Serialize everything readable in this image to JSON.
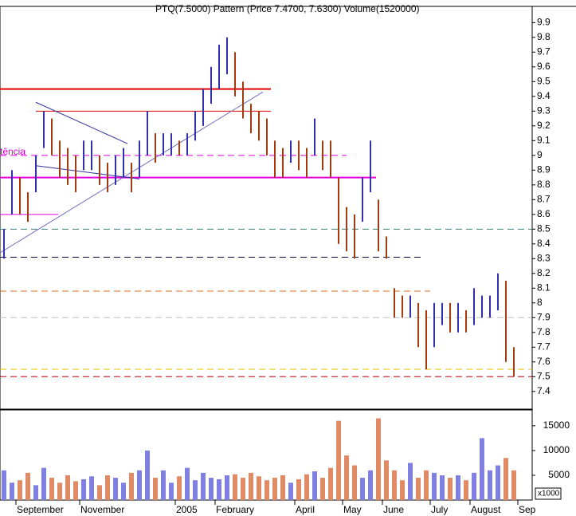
{
  "chart_data": {
    "type": "hilo",
    "title": "PTQ(7.5000) Pattern (Price 7.4700, 7.6300) Volume(1520000)",
    "annotation": "tência",
    "categories": [
      null,
      null,
      "September",
      null,
      null,
      null,
      null,
      null,
      null,
      null,
      "November",
      null,
      null,
      null,
      null,
      null,
      null,
      null,
      null,
      null,
      null,
      null,
      "2005",
      null,
      null,
      null,
      null,
      "February",
      null,
      null,
      null,
      null,
      null,
      null,
      null,
      null,
      null,
      "April",
      null,
      null,
      null,
      null,
      null,
      "May",
      null,
      null,
      null,
      null,
      "June",
      null,
      null,
      null,
      null,
      null,
      "July",
      null,
      null,
      null,
      null,
      "August",
      null,
      null,
      null,
      null,
      null,
      "Sep",
      null
    ],
    "high": [
      8.5,
      8.9,
      8.85,
      8.75,
      9.0,
      9.3,
      9.25,
      9.1,
      9.05,
      9.0,
      9.1,
      9.1,
      9.0,
      8.95,
      9.0,
      9.05,
      8.95,
      9.1,
      9.3,
      9.15,
      9.15,
      9.15,
      9.1,
      9.15,
      9.3,
      9.45,
      9.6,
      9.75,
      9.8,
      9.7,
      9.5,
      9.35,
      9.3,
      9.25,
      9.1,
      9.05,
      9.1,
      9.1,
      9.05,
      9.25,
      9.1,
      9.1,
      8.85,
      8.65,
      8.6,
      8.85,
      9.1,
      8.7,
      8.45,
      8.1,
      8.05,
      8.05,
      8.0,
      7.95,
      8.0,
      8.0,
      8.0,
      8.0,
      7.95,
      8.1,
      8.05,
      8.05,
      8.2,
      8.15,
      7.7,
      null,
      null
    ],
    "low": [
      8.3,
      8.6,
      8.6,
      8.55,
      8.75,
      9.05,
      9.0,
      8.85,
      8.8,
      8.75,
      8.9,
      8.9,
      8.8,
      8.75,
      8.8,
      8.85,
      8.75,
      8.85,
      9.0,
      8.95,
      9.0,
      9.0,
      9.0,
      9.0,
      9.1,
      9.2,
      9.35,
      9.45,
      9.55,
      9.4,
      9.25,
      9.15,
      9.1,
      9.0,
      8.85,
      8.85,
      8.95,
      8.9,
      8.85,
      9.0,
      8.9,
      8.85,
      8.4,
      8.35,
      8.3,
      8.55,
      8.75,
      8.35,
      8.3,
      7.9,
      7.9,
      7.9,
      7.7,
      7.55,
      7.7,
      7.85,
      7.8,
      7.8,
      7.8,
      7.85,
      7.9,
      7.9,
      7.95,
      7.6,
      7.5,
      null,
      null
    ],
    "up_color": "#3030b0",
    "down_color": "#a03c10",
    "ylim": [
      7.28,
      10.01
    ],
    "yticks": [
      7.4,
      7.5,
      7.6,
      7.7,
      7.8,
      7.9,
      8.0,
      8.1,
      8.2,
      8.3,
      8.4,
      8.5,
      8.6,
      8.7,
      8.8,
      8.9,
      9.0,
      9.1,
      9.2,
      9.3,
      9.4,
      9.5,
      9.6,
      9.7,
      9.8,
      9.9
    ],
    "lines": [
      {
        "x0": 0,
        "x1": 34,
        "y0": 9.45,
        "y1": 9.45,
        "color": "#e00000",
        "width": 2,
        "dash": false
      },
      {
        "x0": 4.5,
        "x1": 34,
        "y0": 9.3,
        "y1": 9.3,
        "color": "#e00000",
        "width": 1,
        "dash": false
      },
      {
        "x0": 0,
        "x1": 43.5,
        "y0": 9.0,
        "y1": 9.0,
        "color": "#e000e0",
        "width": 1,
        "dash": true
      },
      {
        "x0": 0,
        "x1": 47.2,
        "y0": 8.85,
        "y1": 8.85,
        "color": "#e000e0",
        "width": 2,
        "dash": false
      },
      {
        "x0": 0,
        "x1": 7.3,
        "y0": 8.6,
        "y1": 8.6,
        "color": "#e000e0",
        "width": 1,
        "dash": false
      },
      {
        "x0": 0,
        "x1": 66.8,
        "y0": 8.5,
        "y1": 8.5,
        "color": "#408080",
        "width": 1,
        "dash": true
      },
      {
        "x0": 0,
        "x1": 53,
        "y0": 8.31,
        "y1": 8.31,
        "color": "#000040",
        "width": 1,
        "dash": true
      },
      {
        "x0": 0,
        "x1": 54,
        "y0": 8.08,
        "y1": 8.08,
        "color": "#e07020",
        "width": 1,
        "dash": true
      },
      {
        "x0": 0,
        "x1": 66.8,
        "y0": 7.9,
        "y1": 7.9,
        "color": "#c0c0c0",
        "width": 1,
        "dash": true
      },
      {
        "x0": 0,
        "x1": 66.8,
        "y0": 7.55,
        "y1": 7.55,
        "color": "#e0c000",
        "width": 1,
        "dash": true
      },
      {
        "x0": 0,
        "x1": 66.8,
        "y0": 7.5,
        "y1": 7.5,
        "color": "#c00000",
        "width": 1,
        "dash": true
      },
      {
        "x0": 0,
        "x1": 33,
        "y0": 8.34,
        "y1": 9.43,
        "color": "#7070c0",
        "width": 1,
        "dash": false
      },
      {
        "x0": 4.5,
        "x1": 16,
        "y0": 9.36,
        "y1": 9.08,
        "color": "#3030a0",
        "width": 1,
        "dash": false
      },
      {
        "x0": 4.5,
        "x1": 17.5,
        "y0": 8.93,
        "y1": 8.84,
        "color": "#3030a0",
        "width": 1,
        "dash": false
      }
    ],
    "volume": [
      6000,
      3500,
      4000,
      5500,
      3000,
      6500,
      4500,
      3500,
      5000,
      3800,
      4200,
      4800,
      3000,
      5000,
      4500,
      3500,
      5500,
      6000,
      10000,
      4500,
      6000,
      3500,
      4800,
      6500,
      4000,
      5500,
      4500,
      4200,
      5000,
      5200,
      4500,
      5500,
      4800,
      4000,
      4500,
      5000,
      3500,
      4200,
      5200,
      5800,
      4500,
      6500,
      16000,
      9000,
      7000,
      4500,
      6000,
      16500,
      8000,
      6000,
      4000,
      7500,
      4500,
      6000,
      5500,
      5000,
      4500,
      5000,
      4000,
      5500,
      12500,
      6000,
      7000,
      8500,
      6000,
      null,
      null
    ],
    "volume_up_color": "#8080e0",
    "volume_down_color": "#e08a66",
    "volume_ylim": [
      0,
      18200
    ],
    "volume_yticks": [
      5000,
      10000,
      15000
    ],
    "volume_unit": "x1000"
  }
}
